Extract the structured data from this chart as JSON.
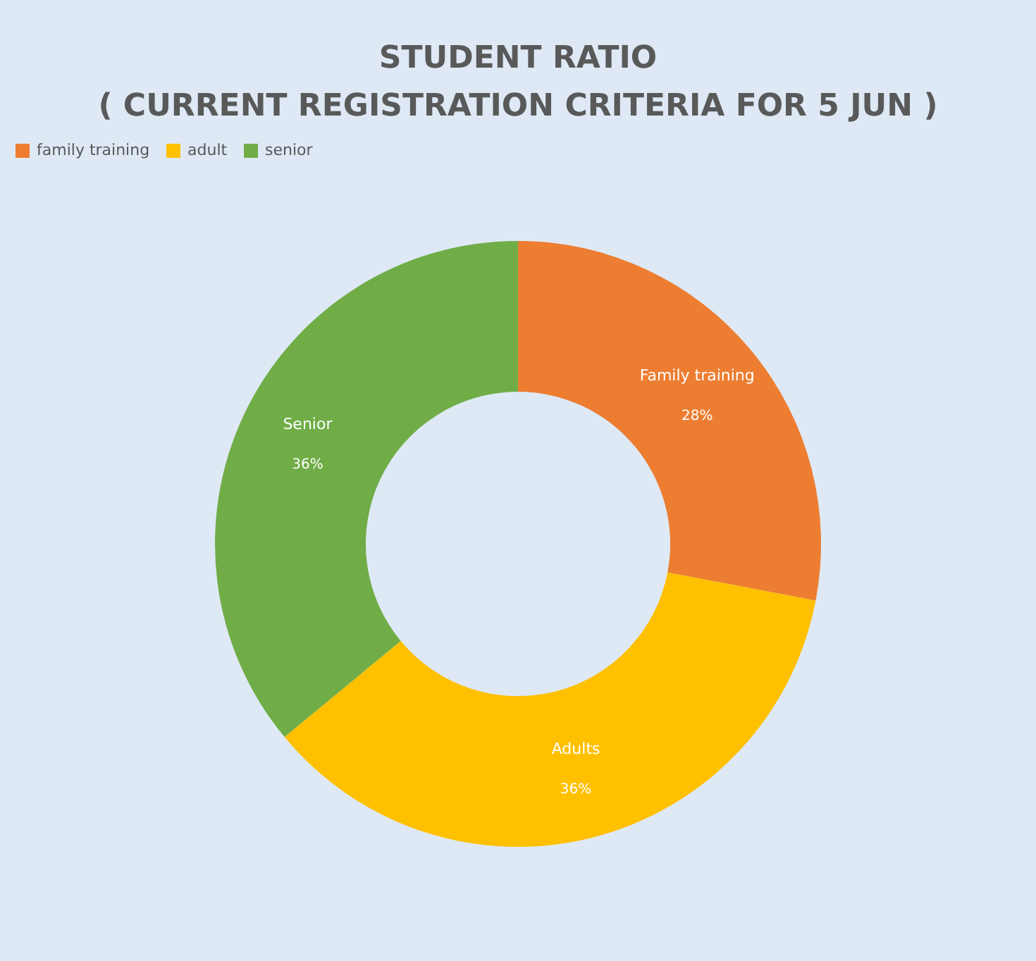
{
  "chart_data": {
    "type": "donut",
    "title": "STUDENT RATIO",
    "subtitle": "( CURRENT REGISTRATION CRITERIA FOR 5 JUN )",
    "categories": [
      "family training",
      "adult",
      "senior"
    ],
    "values": [
      28,
      36,
      36
    ],
    "colors": [
      "#ed7d31",
      "#ffc000",
      "#70ad47"
    ],
    "value_labels": [
      "28%",
      "36%",
      "36%"
    ],
    "annotations": [
      {
        "text": "Family training",
        "x": "family training"
      },
      {
        "text": "Adults",
        "x": "adult"
      },
      {
        "text": "Senior",
        "x": "senior"
      }
    ],
    "legend": "top"
  }
}
